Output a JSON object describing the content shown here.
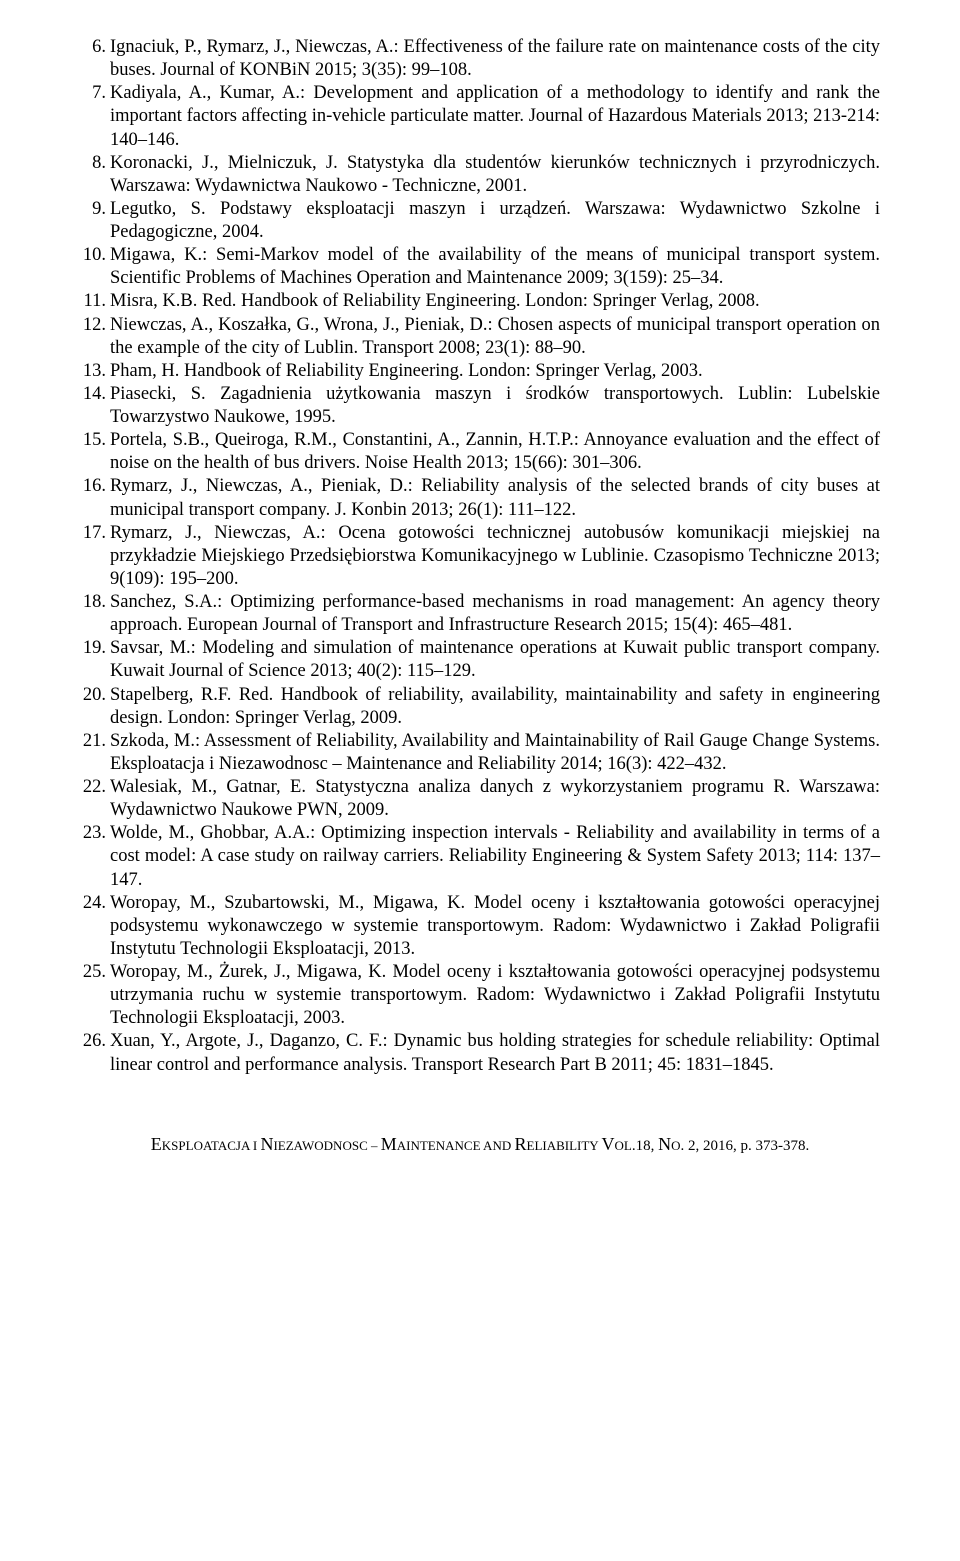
{
  "references": [
    {
      "n": "6.",
      "t": "Ignaciuk, P., Rymarz, J., Niewczas, A.: Effectiveness of the failure rate on maintenance costs of the city buses. Journal of KONBiN 2015; 3(35): 99–108."
    },
    {
      "n": "7.",
      "t": "Kadiyala, A., Kumar, A.: Development and application of a methodology to identify and rank the important factors affecting in-vehicle particulate matter. Journal of Hazardous Materials 2013; 213-214: 140–146."
    },
    {
      "n": "8.",
      "t": "Koronacki, J., Mielniczuk, J. Statystyka dla studentów kierunków technicznych i przyrodniczych. Warszawa: Wydawnictwa Naukowo - Techniczne, 2001."
    },
    {
      "n": "9.",
      "t": "Legutko, S. Podstawy eksploatacji maszyn i urządzeń. Warszawa: Wydawnictwo Szkolne i Pedagogiczne, 2004."
    },
    {
      "n": "10.",
      "t": "Migawa, K.: Semi-Markov model of the availability of the means of municipal transport system. Scientific Problems of Machines Operation and Maintenance 2009; 3(159): 25–34."
    },
    {
      "n": "11.",
      "t": "Misra, K.B. Red. Handbook of Reliability Engineering. London: Springer Verlag, 2008."
    },
    {
      "n": "12.",
      "t": "Niewczas, A., Koszałka, G., Wrona, J., Pieniak, D.: Chosen aspects of municipal transport operation on the example of the city of Lublin. Transport 2008; 23(1): 88–90."
    },
    {
      "n": "13.",
      "t": "Pham, H. Handbook of Reliability Engineering. London: Springer Verlag, 2003."
    },
    {
      "n": "14.",
      "t": "Piasecki, S. Zagadnienia użytkowania maszyn i środków transportowych. Lublin: Lubelskie Towarzystwo Naukowe, 1995."
    },
    {
      "n": "15.",
      "t": "Portela, S.B., Queiroga, R.M., Constantini, A., Zannin, H.T.P.: Annoyance evaluation and the effect of noise on the health of bus drivers. Noise Health 2013; 15(66): 301–306."
    },
    {
      "n": "16.",
      "t": "Rymarz, J., Niewczas, A., Pieniak, D.: Reliability analysis of the selected brands of city buses at municipal transport company. J. Konbin 2013; 26(1): 111–122."
    },
    {
      "n": "17.",
      "t": "Rymarz, J., Niewczas, A.: Ocena gotowości technicznej autobusów komunikacji miejskiej na przykładzie Miejskiego Przedsiębiorstwa Komunikacyjnego w Lublinie. Czasopismo Techniczne 2013; 9(109): 195–200."
    },
    {
      "n": "18.",
      "t": "Sanchez, S.A.: Optimizing performance-based mechanisms in road management: An agency theory approach. European Journal of Transport and Infrastructure Research 2015; 15(4): 465–481."
    },
    {
      "n": "19.",
      "t": "Savsar, M.: Modeling and simulation of maintenance operations at Kuwait public transport company. Kuwait Journal of Science 2013; 40(2): 115–129."
    },
    {
      "n": "20.",
      "t": "Stapelberg, R.F. Red. Handbook of reliability, availability, maintainability and safety in engineering design. London: Springer Verlag, 2009."
    },
    {
      "n": "21.",
      "t": "Szkoda, M.: Assessment of Reliability, Availability and Maintainability of Rail Gauge Change Systems. Eksploatacja i Niezawodnosc – Maintenance and Reliability 2014; 16(3): 422–432."
    },
    {
      "n": "22.",
      "t": "Walesiak, M., Gatnar, E. Statystyczna analiza danych z wykorzystaniem programu R. Warszawa: Wydawnictwo Naukowe PWN, 2009."
    },
    {
      "n": "23.",
      "t": "Wolde, M., Ghobbar, A.A.: Optimizing inspection intervals - Reliability and availability in terms of a cost model: A case study on railway carriers. Reliability Engineering & System Safety 2013; 114: 137–147."
    },
    {
      "n": "24.",
      "t": "Woropay, M., Szubartowski, M., Migawa, K. Model oceny i kształtowania gotowości operacyjnej podsystemu wykonawczego w systemie transportowym. Radom: Wydawnictwo i Zakład Poligrafii Instytutu Technologii Eksploatacji, 2013."
    },
    {
      "n": "25.",
      "t": "Woropay, M., Żurek, J., Migawa, K. Model oceny i kształtowania gotowości operacyjnej podsystemu utrzymania ruchu w systemie transportowym. Radom: Wydawnictwo i Zakład Poligrafii Instytutu Technologii Eksploatacji, 2003."
    },
    {
      "n": "26.",
      "t": "Xuan, Y., Argote, J., Daganzo, C. F.: Dynamic bus holding strategies for schedule reliability: Optimal linear control and performance analysis. Transport Research Part B 2011; 45: 1831–1845."
    }
  ],
  "footer": {
    "journal_pre": "E",
    "journal_1": "KSPLOATACJA I ",
    "journal_pre2": "N",
    "journal_2": "IEZAWODNOSC – ",
    "journal_pre3": "M",
    "journal_3": "AINTENANCE AND ",
    "journal_pre4": "R",
    "journal_4": "ELIABILITY ",
    "vol": "V",
    "vol2": "OL",
    "volnum": ".18, ",
    "no": "N",
    "no2": "O",
    "rest": ". 2, 2016, p. 373-378."
  }
}
